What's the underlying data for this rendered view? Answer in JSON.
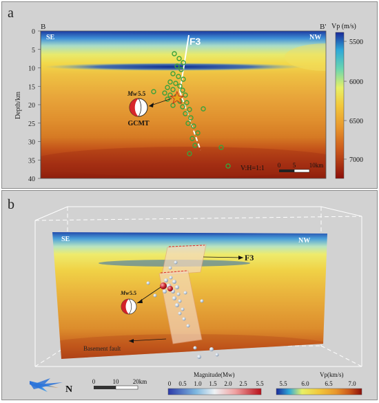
{
  "panel_a": {
    "letter": "a",
    "profile_start": "B",
    "profile_end": "B'",
    "left_direction": "SE",
    "right_direction": "NW",
    "fault_label": "F3",
    "ylabel": "Depth/km",
    "depth_ticks": [
      "0",
      "5",
      "10",
      "15",
      "20",
      "25",
      "30",
      "35",
      "40"
    ],
    "focal_mechanism": {
      "mag_prefix": "Mw",
      "mag_value": "5.5",
      "source": "GCMT"
    },
    "aspect_ratio": "V:H=1:1",
    "scalebar_labels": [
      "0",
      "5",
      "10km"
    ],
    "colorbar": {
      "title": "Vp (m/s)",
      "ticks": [
        "5500",
        "6000",
        "6500",
        "7000"
      ]
    }
  },
  "panel_b": {
    "letter": "b",
    "left_direction": "SE",
    "right_direction": "NW",
    "fault_label": "F3",
    "mainshock": {
      "mag_prefix": "Mw",
      "mag_value": "5.5"
    },
    "basement_fault_label": "Basement fault",
    "north_label": "N",
    "scalebar_labels": [
      "0",
      "10",
      "20km"
    ],
    "magnitude_colorbar": {
      "title": "Magnitude(Mw)",
      "ticks": [
        "0",
        "0.5",
        "1.0",
        "1.5",
        "2.0",
        "2.5",
        "5.5"
      ]
    },
    "vp_colorbar": {
      "title": "Vp(km/s)",
      "ticks": [
        "5.5",
        "6.0",
        "6.5",
        "7.0"
      ]
    }
  },
  "colors": {
    "fast_blue": "#10308f",
    "slow_red": "#8b1a0c",
    "green_events": "#3ba13b",
    "mainshock_star": "#e6a21a"
  }
}
